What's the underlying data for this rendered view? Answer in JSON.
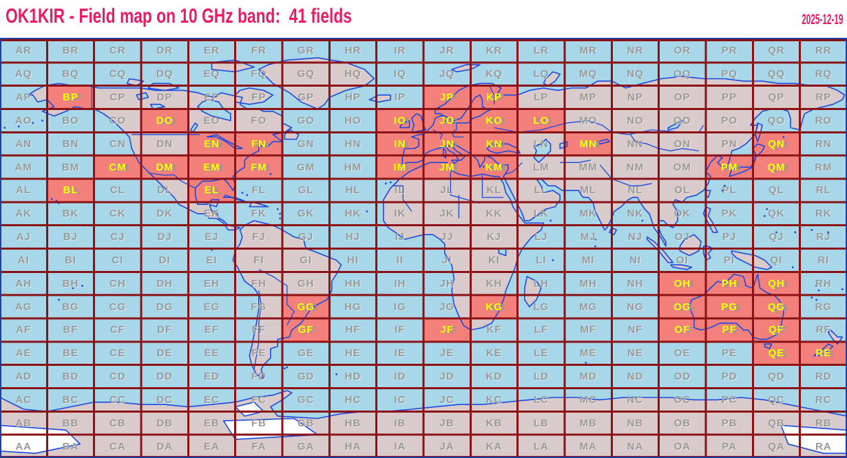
{
  "header": {
    "title": "OK1KIR - Field map on 10 GHz band:  41 fields",
    "date": "2025-12-19"
  },
  "map": {
    "field_count": 41,
    "grid": {
      "column_letters": [
        "A",
        "B",
        "C",
        "D",
        "E",
        "F",
        "G",
        "H",
        "I",
        "J",
        "K",
        "L",
        "M",
        "N",
        "O",
        "P",
        "Q",
        "R"
      ],
      "row_letters_top_to_bottom": [
        "R",
        "Q",
        "P",
        "O",
        "N",
        "M",
        "L",
        "K",
        "J",
        "I",
        "H",
        "G",
        "F",
        "E",
        "D",
        "C",
        "B",
        "A"
      ],
      "worked_fields": [
        "BP",
        "JP",
        "KP",
        "DO",
        "IO",
        "JO",
        "KO",
        "LO",
        "EN",
        "FN",
        "IN",
        "JN",
        "KN",
        "MN",
        "QN",
        "CM",
        "DM",
        "EM",
        "FM",
        "IM",
        "JM",
        "KM",
        "PM",
        "QM",
        "BL",
        "EL",
        "OH",
        "PH",
        "QH",
        "GG",
        "KG",
        "OG",
        "PG",
        "QG",
        "GF",
        "JF",
        "OF",
        "PF",
        "QF",
        "QE",
        "RE"
      ]
    },
    "colors": {
      "title_text": "#ea1a66",
      "background": "#ffffff",
      "ocean": "#a7d7e8",
      "land": "#d9cbcb",
      "worked_cell": "#f4807c",
      "ice": "#ffffff",
      "grid_line": "#8c1114",
      "frame": "#1e3fa0",
      "coastline": "#1a49e0",
      "cell_label": "#9a9a9a",
      "worked_cell_label": "#ffff00"
    }
  }
}
